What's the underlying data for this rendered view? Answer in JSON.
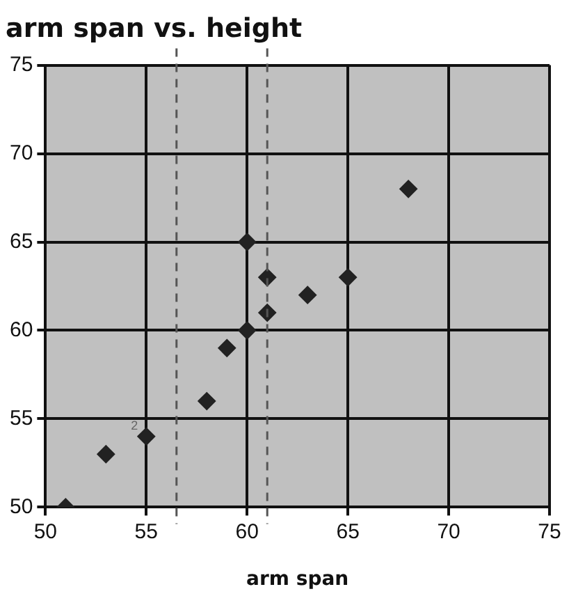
{
  "chart_data": {
    "type": "scatter",
    "title": "arm span vs. height",
    "xlabel": "arm span",
    "x": [
      51,
      53,
      55,
      58,
      59,
      60,
      60,
      61,
      61,
      63,
      65,
      68
    ],
    "values": [
      50,
      53,
      54,
      56,
      59,
      60,
      65,
      61,
      63,
      62,
      63,
      68
    ],
    "color": "#222222",
    "marker": "diamond",
    "xlim": [
      50,
      75
    ],
    "xticks": [
      50,
      55,
      60,
      65,
      70,
      75
    ],
    "ylim": [
      50,
      75
    ],
    "yticks": [
      50,
      55,
      60,
      65,
      70,
      75
    ],
    "grid": true,
    "legend": false,
    "ref_lines": [
      {
        "axis": "x",
        "value": 56.5,
        "color": "#555555",
        "line_style": "dashed"
      },
      {
        "axis": "x",
        "value": 61,
        "color": "#555555",
        "line_style": "dashed"
      }
    ],
    "annotations": [
      {
        "text": "2",
        "x": 55,
        "y": 54
      }
    ]
  }
}
